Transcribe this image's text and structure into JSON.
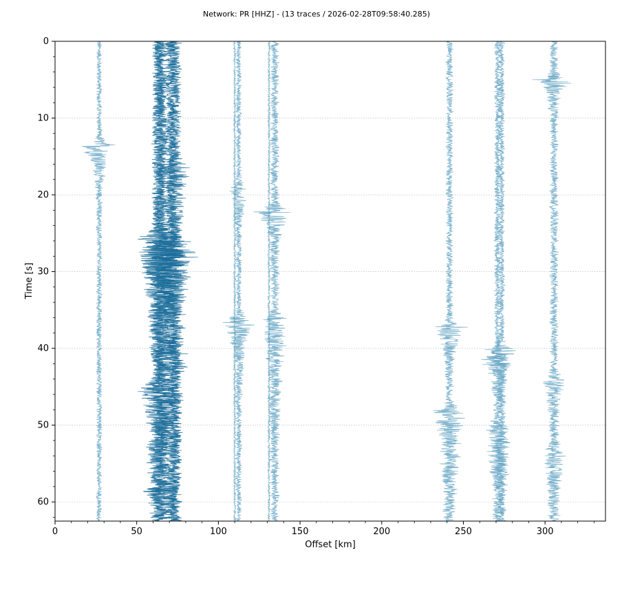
{
  "chart_data": {
    "type": "line",
    "title": "Network: PR [HHZ] - (13 traces / 2026-02-28T09:58:40.285)",
    "xlabel": "Offset [km]",
    "ylabel": "Time [s]",
    "xlim": [
      0,
      337
    ],
    "ylim": [
      62.5,
      0
    ],
    "y_inverted": true,
    "x_ticks": [
      0,
      50,
      100,
      150,
      200,
      250,
      300
    ],
    "y_ticks": [
      0,
      10,
      20,
      30,
      40,
      50,
      60
    ],
    "grid": "horizontal dotted at major time ticks",
    "legend": "none",
    "colors": {
      "trace": "#5ea0c1",
      "trace_dark": "#1a6c99",
      "grid": "#b0b0b0",
      "axis": "#000000"
    },
    "series": [
      {
        "offset": 27.0,
        "amp": 2.0,
        "events": [
          {
            "t": 13.5,
            "amp": 13,
            "dur": 3.5
          }
        ]
      },
      {
        "offset": 63.5,
        "amp": 5.0,
        "events": [
          {
            "t": 25,
            "amp": 14,
            "dur": 10
          },
          {
            "t": 45,
            "amp": 9,
            "dur": 14
          }
        ],
        "dark": true
      },
      {
        "offset": 65.0,
        "amp": 5.5,
        "events": [
          {
            "t": 27,
            "amp": 12,
            "dur": 12
          },
          {
            "t": 58,
            "amp": 8,
            "dur": 4
          }
        ],
        "dark": true
      },
      {
        "offset": 71.0,
        "amp": 4.5,
        "events": [
          {
            "t": 26,
            "amp": 16,
            "dur": 9
          },
          {
            "t": 40,
            "amp": 8,
            "dur": 14
          }
        ],
        "dark": true
      },
      {
        "offset": 73.5,
        "amp": 4.5,
        "events": [
          {
            "t": 16,
            "amp": 6,
            "dur": 8
          },
          {
            "t": 28,
            "amp": 10,
            "dur": 10
          }
        ],
        "dark": true
      },
      {
        "offset": 112.5,
        "amp": 2.0,
        "events": [
          {
            "t": 19,
            "amp": 6,
            "dur": 5
          },
          {
            "t": 36,
            "amp": 10,
            "dur": 6
          }
        ]
      },
      {
        "offset": 134.5,
        "amp": 3.0,
        "events": [
          {
            "t": 22,
            "amp": 12,
            "dur": 4
          },
          {
            "t": 36,
            "amp": 7,
            "dur": 12
          }
        ]
      },
      {
        "offset": 241.5,
        "amp": 2.5,
        "events": [
          {
            "t": 37,
            "amp": 10,
            "dur": 4
          },
          {
            "t": 48,
            "amp": 10,
            "dur": 14
          }
        ]
      },
      {
        "offset": 271.0,
        "amp": 2.5,
        "events": [
          {
            "t": 41,
            "amp": 13,
            "dur": 4
          },
          {
            "t": 50,
            "amp": 7,
            "dur": 12
          }
        ]
      },
      {
        "offset": 273.5,
        "amp": 2.0,
        "events": [
          {
            "t": 40,
            "amp": 11,
            "dur": 5
          },
          {
            "t": 52,
            "amp": 5,
            "dur": 10
          }
        ]
      },
      {
        "offset": 305.5,
        "amp": 3.0,
        "events": [
          {
            "t": 5,
            "amp": 13,
            "dur": 2.5
          },
          {
            "t": 44,
            "amp": 7,
            "dur": 4
          },
          {
            "t": 53,
            "amp": 5,
            "dur": 10
          }
        ]
      },
      {
        "offset": 110.0,
        "amp": 0.8,
        "events": []
      },
      {
        "offset": 131.0,
        "amp": 0.8,
        "events": []
      }
    ]
  }
}
